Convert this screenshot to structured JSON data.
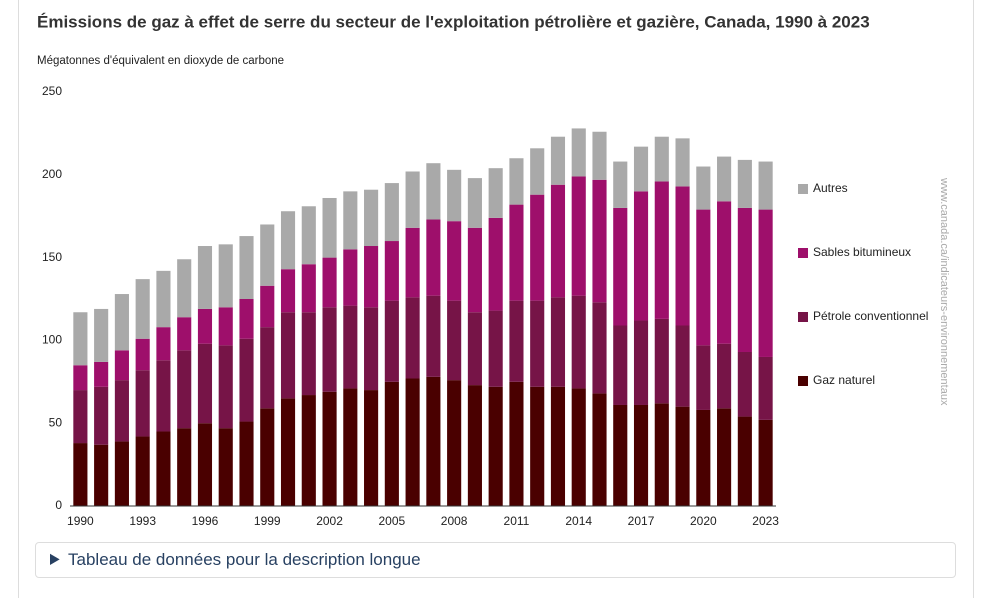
{
  "chart_data": {
    "type": "stacked-bar",
    "title": "Émissions de gaz à effet de serre du secteur de l'exploitation pétrolière et gazière, Canada, 1990 à 2023",
    "y_label": "Mégatonnes d'équivalent en dioxyde de carbone",
    "watermark": "www.canada.ca/indicateurs-environnementaux",
    "details": "Tableau de données pour la description longue",
    "categories": [
      "1990",
      null,
      null,
      "1993",
      null,
      null,
      "1996",
      null,
      null,
      "1999",
      null,
      null,
      "2002",
      null,
      null,
      "2005",
      null,
      null,
      "2008",
      null,
      null,
      "2011",
      null,
      null,
      "2014",
      null,
      null,
      "2017",
      null,
      null,
      "2020",
      null,
      null,
      "2023"
    ],
    "series": [
      {
        "name": "Gaz naturel",
        "color": "#4a0000",
        "values": [
          38,
          37,
          39,
          42,
          45,
          47,
          50,
          47,
          51,
          59,
          65,
          67,
          69,
          71,
          70,
          75,
          77,
          78,
          76,
          73,
          72,
          75,
          72,
          72,
          71,
          68,
          61,
          61,
          62,
          60,
          58,
          59,
          54,
          52
        ]
      },
      {
        "name": "Pétrole conventionnel",
        "color": "#761447",
        "values": [
          32,
          35,
          37,
          40,
          43,
          47,
          48,
          50,
          50,
          49,
          52,
          50,
          51,
          50,
          50,
          49,
          49,
          49,
          48,
          44,
          46,
          49,
          52,
          54,
          56,
          55,
          48,
          51,
          51,
          49,
          39,
          39,
          39,
          38
        ]
      },
      {
        "name": "Sables bitumineux",
        "color": "#9e0f6b",
        "values": [
          15,
          15,
          18,
          19,
          20,
          20,
          21,
          23,
          24,
          25,
          26,
          29,
          30,
          34,
          37,
          36,
          42,
          46,
          48,
          51,
          56,
          58,
          64,
          68,
          72,
          74,
          71,
          78,
          83,
          84,
          82,
          86,
          87,
          89
        ]
      },
      {
        "name": "Autres",
        "color": "#a9a9a9",
        "values": [
          32,
          32,
          34,
          36,
          34,
          35,
          38,
          38,
          38,
          37,
          35,
          35,
          36,
          35,
          34,
          35,
          34,
          34,
          31,
          30,
          30,
          28,
          28,
          29,
          29,
          29,
          28,
          27,
          27,
          29,
          26,
          27,
          29,
          29
        ]
      }
    ],
    "ylim": [
      0,
      250
    ],
    "yticks": [
      0,
      50,
      100,
      150,
      200,
      250
    ],
    "grid": false
  }
}
